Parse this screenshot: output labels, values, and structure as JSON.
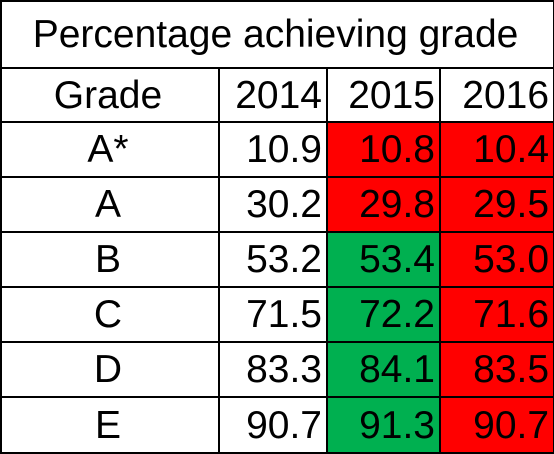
{
  "table": {
    "title": "Percentage achieving grade",
    "header": {
      "grade_label": "Grade",
      "years": [
        "2014",
        "2015",
        "2016"
      ]
    },
    "rows": [
      {
        "grade": "A*",
        "values": [
          "10.9",
          "10.8",
          "10.4"
        ],
        "highlights": [
          "none",
          "red",
          "red"
        ]
      },
      {
        "grade": "A",
        "values": [
          "30.2",
          "29.8",
          "29.5"
        ],
        "highlights": [
          "none",
          "red",
          "red"
        ]
      },
      {
        "grade": "B",
        "values": [
          "53.2",
          "53.4",
          "53.0"
        ],
        "highlights": [
          "none",
          "green",
          "red"
        ]
      },
      {
        "grade": "C",
        "values": [
          "71.5",
          "72.2",
          "71.6"
        ],
        "highlights": [
          "none",
          "green",
          "red"
        ]
      },
      {
        "grade": "D",
        "values": [
          "83.3",
          "84.1",
          "83.5"
        ],
        "highlights": [
          "none",
          "green",
          "red"
        ]
      },
      {
        "grade": "E",
        "values": [
          "90.7",
          "91.3",
          "90.7"
        ],
        "highlights": [
          "none",
          "green",
          "red"
        ]
      }
    ]
  },
  "colors": {
    "decrease": "#ff0000",
    "increase": "#00b050"
  }
}
